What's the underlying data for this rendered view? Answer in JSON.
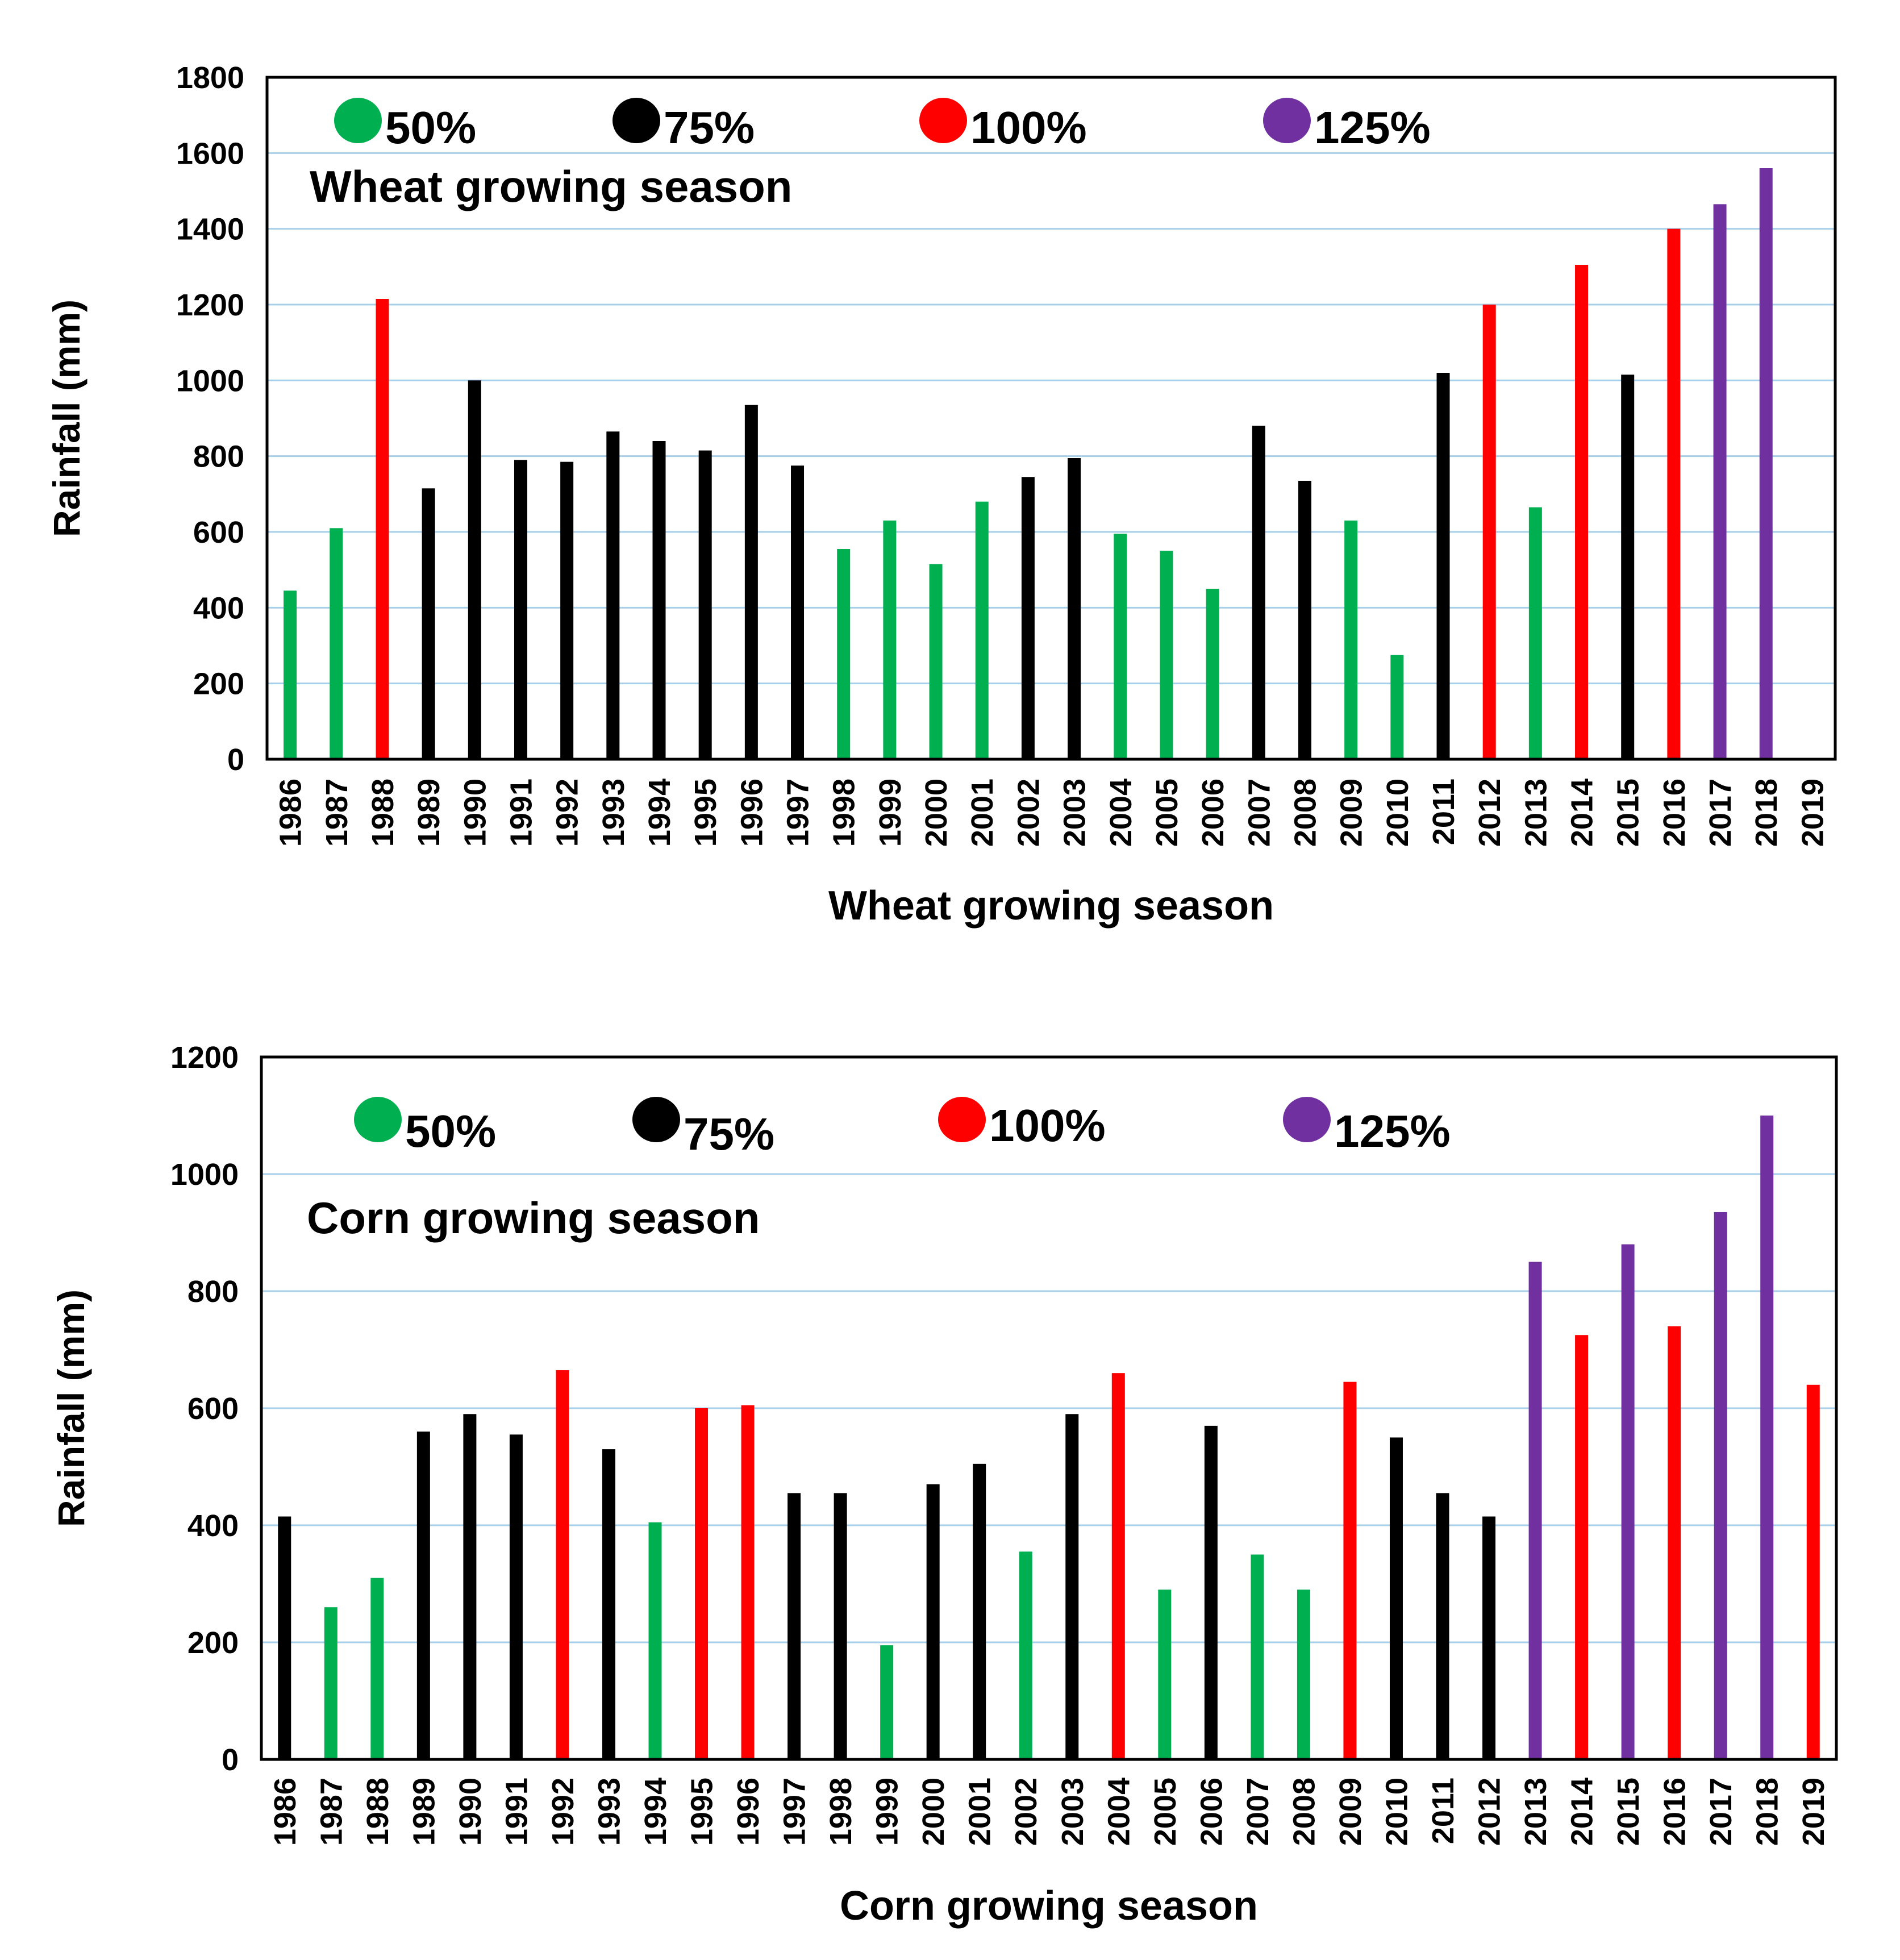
{
  "category_colors": {
    "50%": "#00b050",
    "75%": "#000000",
    "100%": "#ff0000",
    "125%": "#7030a0"
  },
  "chart_data": [
    {
      "type": "bar",
      "title": "Wheat growing season",
      "xlabel": "Wheat growing season",
      "ylabel": "Rainfall (mm)",
      "ylim": [
        0,
        1800
      ],
      "yticks": [
        0,
        200,
        400,
        600,
        800,
        1000,
        1200,
        1400,
        1600,
        1800
      ],
      "grid": true,
      "legend_position": "top",
      "legend": [
        {
          "label": "50%",
          "color": "#00b050"
        },
        {
          "label": "75%",
          "color": "#000000"
        },
        {
          "label": "100%",
          "color": "#ff0000"
        },
        {
          "label": "125%",
          "color": "#7030a0"
        }
      ],
      "categories": [
        "1986",
        "1987",
        "1988",
        "1989",
        "1990",
        "1991",
        "1992",
        "1993",
        "1994",
        "1995",
        "1996",
        "1997",
        "1998",
        "1999",
        "2000",
        "2001",
        "2002",
        "2003",
        "2004",
        "2005",
        "2006",
        "2007",
        "2008",
        "2009",
        "2010",
        "2011",
        "2012",
        "2013",
        "2014",
        "2015",
        "2016",
        "2017",
        "2018",
        "2019"
      ],
      "values": [
        445,
        610,
        1215,
        715,
        1000,
        790,
        785,
        865,
        840,
        815,
        935,
        775,
        555,
        630,
        515,
        680,
        745,
        795,
        595,
        550,
        450,
        880,
        735,
        630,
        275,
        1020,
        1200,
        665,
        1305,
        1015,
        1400,
        1465,
        1560,
        null
      ],
      "value_class": [
        "50%",
        "50%",
        "100%",
        "75%",
        "75%",
        "75%",
        "75%",
        "75%",
        "75%",
        "75%",
        "75%",
        "75%",
        "50%",
        "50%",
        "50%",
        "50%",
        "75%",
        "75%",
        "50%",
        "50%",
        "50%",
        "75%",
        "75%",
        "50%",
        "50%",
        "75%",
        "100%",
        "50%",
        "100%",
        "75%",
        "100%",
        "125%",
        "125%",
        null
      ]
    },
    {
      "type": "bar",
      "title": "Corn growing season",
      "xlabel": "Corn growing season",
      "ylabel": "Rainfall (mm)",
      "ylim": [
        0,
        1200
      ],
      "yticks": [
        0,
        200,
        400,
        600,
        800,
        1000,
        1200
      ],
      "grid": true,
      "legend_position": "top",
      "legend": [
        {
          "label": "50%",
          "color": "#00b050"
        },
        {
          "label": "75%",
          "color": "#000000"
        },
        {
          "label": "100%",
          "color": "#ff0000"
        },
        {
          "label": "125%",
          "color": "#7030a0"
        }
      ],
      "categories": [
        "1986",
        "1987",
        "1988",
        "1989",
        "1990",
        "1991",
        "1992",
        "1993",
        "1994",
        "1995",
        "1996",
        "1997",
        "1998",
        "1999",
        "2000",
        "2001",
        "2002",
        "2003",
        "2004",
        "2005",
        "2006",
        "2007",
        "2008",
        "2009",
        "2010",
        "2011",
        "2012",
        "2013",
        "2014",
        "2015",
        "2016",
        "2017",
        "2018",
        "2019"
      ],
      "values": [
        415,
        260,
        310,
        560,
        590,
        555,
        665,
        530,
        405,
        600,
        605,
        455,
        455,
        195,
        470,
        505,
        355,
        590,
        660,
        290,
        570,
        350,
        290,
        645,
        550,
        455,
        415,
        850,
        725,
        880,
        740,
        935,
        1100,
        640
      ],
      "value_class": [
        "75%",
        "50%",
        "50%",
        "75%",
        "75%",
        "75%",
        "100%",
        "75%",
        "50%",
        "100%",
        "100%",
        "75%",
        "75%",
        "50%",
        "75%",
        "75%",
        "50%",
        "75%",
        "100%",
        "50%",
        "75%",
        "50%",
        "50%",
        "100%",
        "75%",
        "75%",
        "75%",
        "125%",
        "100%",
        "125%",
        "100%",
        "125%",
        "125%",
        "100%"
      ]
    }
  ]
}
